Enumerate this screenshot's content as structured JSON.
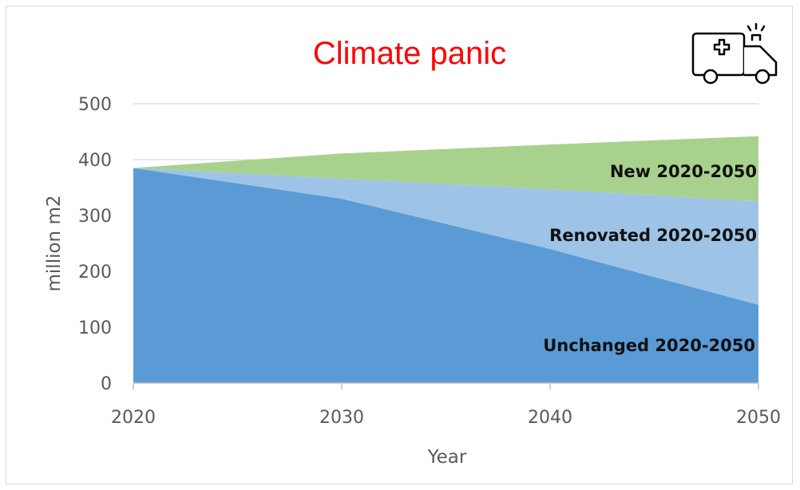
{
  "chart_data": {
    "type": "area",
    "stacked": true,
    "title": "Climate panic",
    "xlabel": "Year",
    "ylabel": "million m2",
    "x": [
      2020,
      2030,
      2040,
      2050
    ],
    "xticks": [
      "2020",
      "2030",
      "2040",
      "2050"
    ],
    "yticks": [
      "0",
      "100",
      "200",
      "300",
      "400",
      "500"
    ],
    "ylim": [
      0,
      500
    ],
    "grid": true,
    "icon": "ambulance-icon",
    "series": [
      {
        "name": "Unchanged 2020-2050",
        "values": [
          385,
          330,
          240,
          140
        ],
        "color": "#5b9bd5"
      },
      {
        "name": "Renovated 2020-2050",
        "values": [
          0,
          36,
          107,
          185
        ],
        "color": "#9dc3e6"
      },
      {
        "name": "New 2020-2050",
        "values": [
          0,
          45,
          80,
          117
        ],
        "color": "#a9d18e"
      }
    ]
  }
}
